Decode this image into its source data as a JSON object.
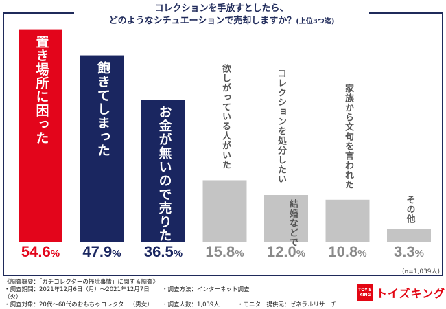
{
  "title": {
    "line1": "コレクションを手放すとしたら、",
    "line2": "どのようなシチュエーションで売却しますか？",
    "line2_note": "(上位3つ迄)"
  },
  "chart_data": {
    "type": "bar",
    "title": "コレクションを手放すとしたら、どのようなシチュエーションで売却しますか？(上位3つ迄)",
    "xlabel": "",
    "ylabel": "",
    "ylim": [
      0,
      60
    ],
    "categories": [
      "置き場所に困った",
      "飽きてしまった",
      "お金が無いので売りたい",
      "欲しがっている人がいた",
      "コレクションを処分したい 結婚などで",
      "家族から文句を言われた",
      "その他"
    ],
    "values": [
      54.6,
      47.9,
      36.5,
      15.8,
      12.0,
      10.8,
      3.3
    ],
    "value_labels": [
      "54.6",
      "47.9",
      "36.5",
      "15.8",
      "12.0",
      "10.8",
      "3.3"
    ],
    "unit": "%",
    "bar_colors": [
      "#e3051b",
      "#1a2660",
      "#1a2660",
      "#c4c4c4",
      "#c4c4c4",
      "#c4c4c4",
      "#c4c4c4"
    ],
    "label_colors": [
      "#ffffff",
      "#ffffff",
      "#ffffff",
      "#555555",
      "#555555",
      "#555555",
      "#555555"
    ],
    "pct_colors": [
      "#e3051b",
      "#1a2660",
      "#1a2660",
      "#8a8a8a",
      "#8a8a8a",
      "#8a8a8a",
      "#8a8a8a"
    ],
    "label_columns": [
      [
        "置き場所に困った"
      ],
      [
        "飽きてしまった"
      ],
      [
        "お金が無いので売りたい"
      ],
      [
        "欲しがっている人がいた"
      ],
      [
        "コレクションを処分したい",
        "結婚などで"
      ],
      [
        "家族から文句を言われた"
      ],
      [
        "その他"
      ]
    ],
    "sample_note": "(n=1,039人)"
  },
  "footer": {
    "heading": "《調査概要：「ガチコレクターの掃除事情」に関する調査》",
    "period": "・調査期間：2021年12月6日（月）～2021年12月7日（火）",
    "method": "・調査方法：インターネット調査",
    "target": "・調査対象：20代～60代のおもちゃコレクター（男女）",
    "count": "・調査人数：1,039人",
    "provider": "・モニター提供元：ゼネラルリサーチ"
  },
  "logo": {
    "mark_top": "TOY'S",
    "mark_bottom": "KING",
    "text": "トイズキング"
  }
}
